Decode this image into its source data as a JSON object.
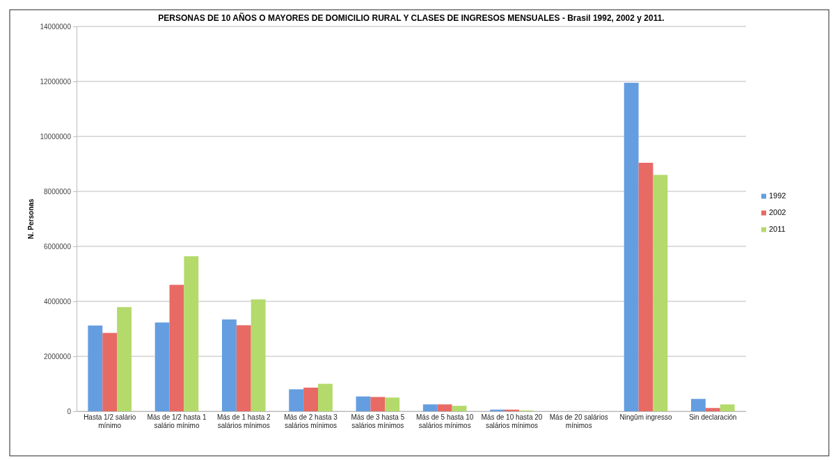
{
  "chart_data": {
    "type": "bar",
    "title": "PERSONAS DE 10 AÑOS O MAYORES DE DOMICILIO RURAL Y CLASES DE INGRESOS MENSUALES - Brasil 1992, 2002 y 2011.",
    "ylabel": "N. Personas",
    "categories": [
      "Hasta 1/2 salário mínimo",
      "Más de 1/2 hasta  1 salário mínimo",
      "Más de 1 hasta 2 salários mínimos",
      "Más de 2 hasta 3 salários mínimos",
      "Más de 3 hasta 5 salários mínimos",
      "Más de 5 hasta 10 salários mínimos",
      "Más de 10 hasta 20 salários mínimos",
      "Más de 20 salários mínimos",
      "Ningûm ingresso",
      "Sin declaración"
    ],
    "series": [
      {
        "name": "1992",
        "color": "#659ee0",
        "values": [
          3120000,
          3230000,
          3340000,
          800000,
          540000,
          250000,
          60000,
          null,
          11950000,
          450000
        ]
      },
      {
        "name": "2002",
        "color": "#e86a64",
        "values": [
          2850000,
          4600000,
          3130000,
          860000,
          520000,
          250000,
          60000,
          null,
          9040000,
          120000
        ]
      },
      {
        "name": "2011",
        "color": "#b4da6c",
        "values": [
          3790000,
          5640000,
          4070000,
          1000000,
          500000,
          200000,
          30000,
          null,
          8600000,
          250000
        ]
      }
    ],
    "ylim": [
      0,
      14000000
    ],
    "yticks": [
      0,
      2000000,
      4000000,
      6000000,
      8000000,
      10000000,
      12000000,
      14000000
    ],
    "grid": "y",
    "legend": "right"
  }
}
